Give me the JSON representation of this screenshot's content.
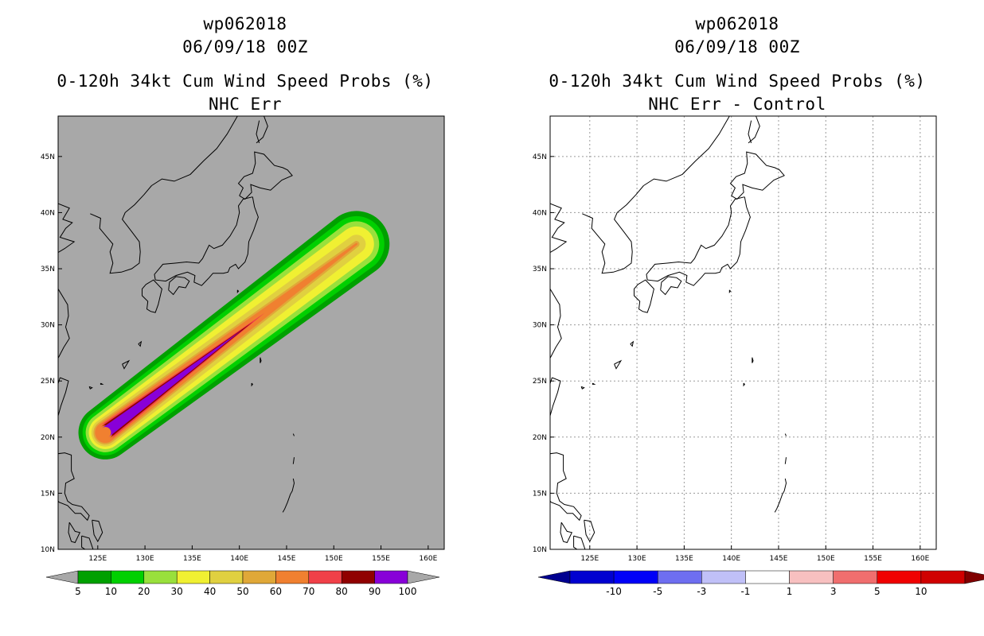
{
  "panels": [
    {
      "storm_id": "wp062018",
      "datetime": "06/09/18 00Z",
      "title": "0-120h 34kt Cum Wind Speed Probs (%)",
      "subtitle": "NHC Err",
      "background": "#a8a8a8",
      "colorbar": {
        "labels": [
          "5",
          "10",
          "20",
          "30",
          "40",
          "50",
          "60",
          "70",
          "80",
          "90",
          "100"
        ],
        "colors": [
          "#00a000",
          "#00d000",
          "#99e03c",
          "#f0f032",
          "#e0d040",
          "#e0a838",
          "#f08030",
          "#f04048",
          "#900000",
          "#8800d8"
        ]
      }
    },
    {
      "storm_id": "wp062018",
      "datetime": "06/09/18 00Z",
      "title": "0-120h 34kt Cum Wind Speed Probs (%)",
      "subtitle": "NHC Err - Control",
      "background": "#ffffff",
      "colorbar": {
        "labels": [
          "-10",
          "-5",
          "-3",
          "-1",
          "1",
          "3",
          "5",
          "10"
        ],
        "colors": [
          "#0000d0",
          "#0000f8",
          "#6e6ef0",
          "#c0c0f8",
          "#ffffff",
          "#f8c0c0",
          "#f06e6e",
          "#f00000",
          "#d00000"
        ],
        "left_color": "#000090",
        "right_color": "#800000"
      }
    }
  ],
  "chart_data": [
    {
      "type": "heatmap",
      "title": "0-120h 34kt Cum Wind Speed Probs (%)",
      "subtitle": "NHC Err",
      "x_ticks": [
        "125E",
        "130E",
        "135E",
        "140E",
        "145E",
        "150E",
        "155E",
        "160E"
      ],
      "y_ticks": [
        "10N",
        "15N",
        "20N",
        "25N",
        "30N",
        "35N",
        "40N",
        "45N"
      ],
      "xlim": [
        120.8,
        161.7
      ],
      "ylim": [
        10,
        48.6
      ],
      "x_tick_values": [
        125,
        130,
        135,
        140,
        145,
        150,
        155,
        160
      ],
      "y_tick_values": [
        10,
        15,
        20,
        25,
        30,
        35,
        40,
        45
      ],
      "grid": false,
      "swath": {
        "start": [
          125.8,
          20.4
        ],
        "end": [
          152.4,
          37.2
        ],
        "levels": [
          {
            "min_pct": 5,
            "color": "#00a000",
            "start_radius_deg": 2.6,
            "end_radius_deg": 3.2
          },
          {
            "min_pct": 10,
            "color": "#00d000",
            "start_radius_deg": 2.2,
            "end_radius_deg": 2.7
          },
          {
            "min_pct": 20,
            "color": "#99e03c",
            "start_radius_deg": 1.9,
            "end_radius_deg": 2.2
          },
          {
            "min_pct": 30,
            "color": "#f0f032",
            "start_radius_deg": 1.6,
            "end_radius_deg": 1.7
          },
          {
            "min_pct": 40,
            "color": "#e0d040",
            "start_radius_deg": 1.35,
            "end_radius_deg": 0.9
          },
          {
            "min_pct": 50,
            "color": "#e0a838",
            "start_radius_deg": 1.15,
            "end_radius_deg": 0.3
          },
          {
            "min_pct": 60,
            "color": "#f08030",
            "start_radius_deg": 1.0,
            "end_radius_deg": 0.1
          },
          {
            "min_pct": 70,
            "color": "#f04048",
            "start_radius_deg": 0.85,
            "end_radius_deg": 0.0
          },
          {
            "min_pct": 80,
            "color": "#900000",
            "start_radius_deg": 0.7,
            "end_radius_deg": 0.0
          },
          {
            "min_pct": 90,
            "color": "#8800d8",
            "start_radius_deg": 0.55,
            "end_radius_deg": 0.0
          }
        ]
      }
    },
    {
      "type": "heatmap",
      "title": "0-120h 34kt Cum Wind Speed Probs (%)",
      "subtitle": "NHC Err - Control",
      "x_ticks": [
        "125E",
        "130E",
        "135E",
        "140E",
        "145E",
        "150E",
        "155E",
        "160E"
      ],
      "y_ticks": [
        "10N",
        "15N",
        "20N",
        "25N",
        "30N",
        "35N",
        "40N",
        "45N"
      ],
      "xlim": [
        120.8,
        161.7
      ],
      "ylim": [
        10,
        48.6
      ],
      "x_tick_values": [
        125,
        130,
        135,
        140,
        145,
        150,
        155,
        160
      ],
      "y_tick_values": [
        10,
        15,
        20,
        25,
        30,
        35,
        40,
        45
      ],
      "grid": true,
      "values_all_within": [
        -1,
        1
      ]
    }
  ]
}
